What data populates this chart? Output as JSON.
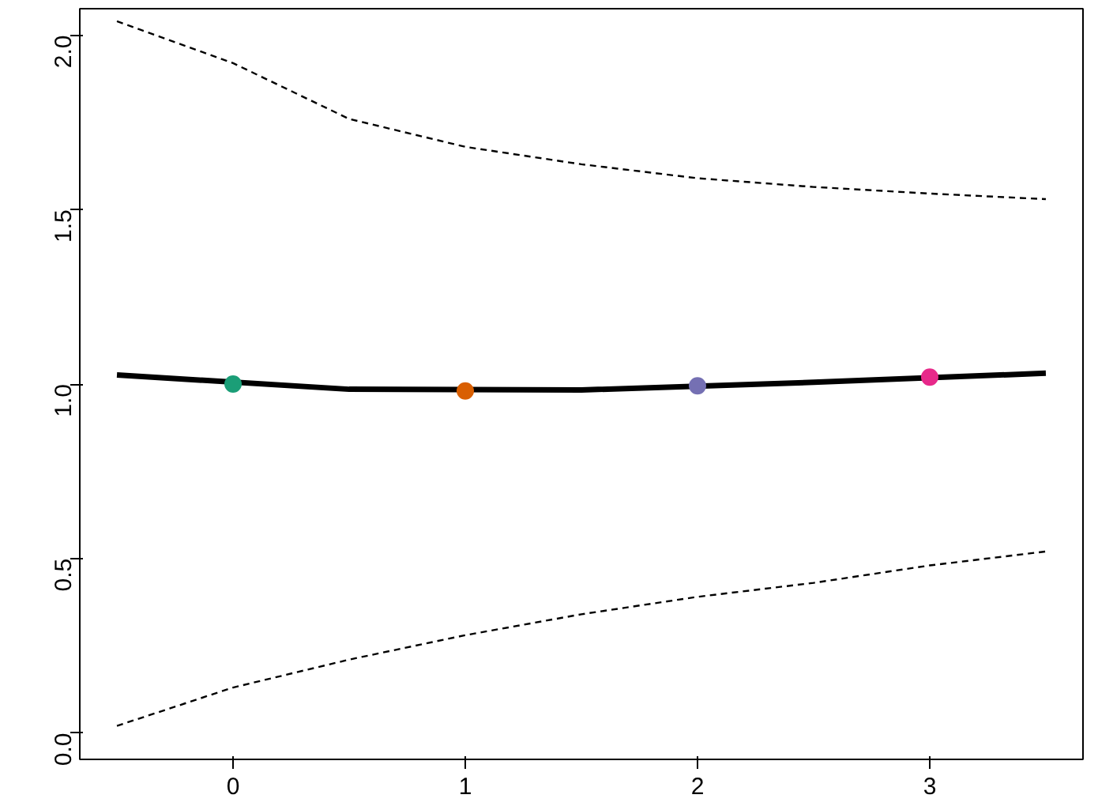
{
  "chart_data": {
    "type": "line",
    "xlim": [
      -0.66,
      3.66
    ],
    "ylim": [
      -0.076,
      2.076
    ],
    "xticks": [
      0,
      1,
      2,
      3
    ],
    "yticks": [
      {
        "value": 0,
        "label": "0.0"
      },
      {
        "value": 0.5,
        "label": "0.5"
      },
      {
        "value": 1,
        "label": "1.0"
      },
      {
        "value": 1.5,
        "label": "1.5"
      },
      {
        "value": 2,
        "label": "2.0"
      }
    ],
    "grid": false,
    "series": [
      {
        "color": "#000000",
        "line_style": "solid",
        "x": [
          -0.5,
          0.5,
          1.5,
          2.5,
          3.5
        ],
        "values": [
          1.026,
          0.985,
          0.983,
          1.005,
          1.031
        ]
      },
      {
        "type": "line",
        "color": "#000000",
        "line_style": "dashed",
        "x": [
          -0.5,
          0,
          0.5,
          1,
          1.5,
          2,
          2.5,
          3,
          3.5
        ],
        "values": [
          2.04,
          1.92,
          1.76,
          1.68,
          1.63,
          1.59,
          1.565,
          1.546,
          1.53
        ]
      },
      {
        "type": "line",
        "color": "#000000",
        "line_style": "dashed",
        "x": [
          -0.5,
          0,
          0.5,
          1,
          1.5,
          2,
          2.5,
          3,
          3.5
        ],
        "values": [
          0.02,
          0.13,
          0.21,
          0.28,
          0.34,
          0.39,
          0.43,
          0.48,
          0.52
        ]
      },
      {
        "type": "scatter",
        "marker": "circle",
        "x": [
          0,
          1,
          2,
          3
        ],
        "values": [
          1.0,
          0.98,
          0.995,
          1.02
        ],
        "colors": [
          "#1b9e77",
          "#d95f02",
          "#7570b3",
          "#e7298a"
        ]
      }
    ]
  }
}
